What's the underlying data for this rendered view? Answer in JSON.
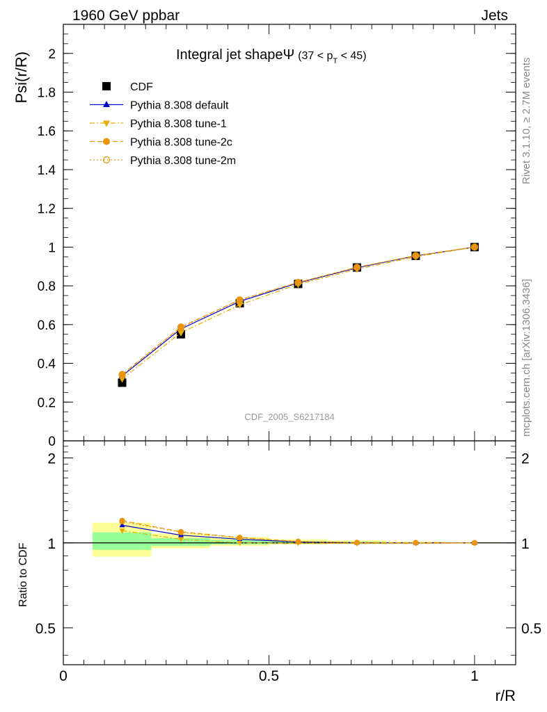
{
  "header": {
    "left": "1960 GeV ppbar",
    "right": "Jets"
  },
  "side_labels": {
    "rivet": "Rivet 3.1.10, ≥ 2.7M events",
    "mcplots": "mcplots.cern.ch [arXiv:1306.3436]"
  },
  "chart_data": [
    {
      "type": "line",
      "panel": "main",
      "title_main": "Integral jet shapeΨ",
      "title_range": "(37 < p",
      "title_sub": "T",
      "title_range_end": " < 45)",
      "ylabel": "Psi(r/R)",
      "xlabel": "",
      "watermark": "CDF_2005_S6217184",
      "xlim": [
        0,
        1.1
      ],
      "ylim": [
        0,
        2.15
      ],
      "yticks": [
        0,
        0.2,
        0.4,
        0.6,
        0.8,
        1,
        1.2,
        1.4,
        1.6,
        1.8,
        2
      ],
      "ytick_labels": [
        "0",
        "0.2",
        "0.4",
        "0.6",
        "0.8",
        "1",
        "1.2",
        "1.4",
        "1.6",
        "1.8",
        "2"
      ],
      "legend_position": "top-left",
      "x": [
        0.143,
        0.286,
        0.429,
        0.571,
        0.714,
        0.857,
        1.0
      ],
      "series": [
        {
          "name": "CDF",
          "marker": "square",
          "color": "#000000",
          "values": [
            0.3,
            0.55,
            0.71,
            0.81,
            0.895,
            0.955,
            1.0
          ]
        },
        {
          "name": "Pythia 8.308 default",
          "marker": "triangle-up",
          "color": "#0000cc",
          "line": "solid",
          "values": [
            0.335,
            0.578,
            0.72,
            0.815,
            0.893,
            0.955,
            1.0
          ]
        },
        {
          "name": "Pythia 8.308 tune-1",
          "marker": "triangle-down",
          "color": "#e6ac00",
          "line": "dashdot",
          "values": [
            0.32,
            0.558,
            0.702,
            0.808,
            0.886,
            0.95,
            1.0
          ]
        },
        {
          "name": "Pythia 8.308 tune-2c",
          "marker": "circle",
          "color": "#e8940c",
          "line": "dashed",
          "values": [
            0.343,
            0.588,
            0.728,
            0.818,
            0.896,
            0.956,
            1.0
          ]
        },
        {
          "name": "Pythia 8.308 tune-2m",
          "marker": "circle-open",
          "color": "#e8940c",
          "line": "dotted",
          "values": [
            0.34,
            0.585,
            0.726,
            0.817,
            0.895,
            0.956,
            1.0
          ]
        }
      ]
    },
    {
      "type": "line",
      "panel": "ratio",
      "ylabel": "Ratio to CDF",
      "xlabel": "r/R",
      "scale": "log",
      "xlim": [
        0,
        1.1
      ],
      "ylim": [
        0.37,
        2.3
      ],
      "yticks": [
        0.5,
        1,
        2
      ],
      "ytick_labels": [
        "0.5",
        "1",
        "2"
      ],
      "xticks": [
        0,
        0.5,
        1
      ],
      "xtick_labels": [
        "0",
        "0.5",
        "1"
      ],
      "x": [
        0.143,
        0.286,
        0.429,
        0.571,
        0.714,
        0.857,
        1.0
      ],
      "bands": {
        "bin_edges": [
          0.071,
          0.214,
          0.357,
          0.5,
          0.643,
          0.786,
          0.929,
          1.071
        ],
        "yellow_color": "#ffff99",
        "green_color": "#99ff99",
        "yellow_lo": [
          0.893,
          0.955,
          0.975,
          0.987,
          0.993,
          0.997,
          0.999
        ],
        "yellow_hi": [
          1.18,
          1.08,
          1.05,
          1.03,
          1.02,
          1.01,
          1.005
        ],
        "green_lo": [
          0.945,
          0.975,
          0.988,
          0.994,
          0.997,
          0.999,
          1.0
        ],
        "green_hi": [
          1.09,
          1.04,
          1.025,
          1.015,
          1.01,
          1.005,
          1.002
        ]
      },
      "series": [
        {
          "name": "Pythia 8.308 default",
          "marker": "triangle-up",
          "color": "#0000cc",
          "line": "solid",
          "values": [
            1.155,
            1.065,
            1.03,
            1.008,
            1.002,
            1.0,
            1.0
          ]
        },
        {
          "name": "Pythia 8.308 tune-1",
          "marker": "triangle-down",
          "color": "#e6ac00",
          "line": "dashdot",
          "values": [
            1.105,
            1.03,
            1.0,
            0.998,
            0.995,
            0.995,
            1.0
          ]
        },
        {
          "name": "Pythia 8.308 tune-2c",
          "marker": "circle",
          "color": "#e8940c",
          "line": "dashed",
          "values": [
            1.2,
            1.095,
            1.045,
            1.012,
            1.003,
            1.001,
            1.0
          ]
        },
        {
          "name": "Pythia 8.308 tune-2m",
          "marker": "circle-open",
          "color": "#e8940c",
          "line": "dotted",
          "values": [
            1.19,
            1.09,
            1.042,
            1.01,
            1.002,
            1.001,
            1.0
          ]
        }
      ]
    }
  ]
}
